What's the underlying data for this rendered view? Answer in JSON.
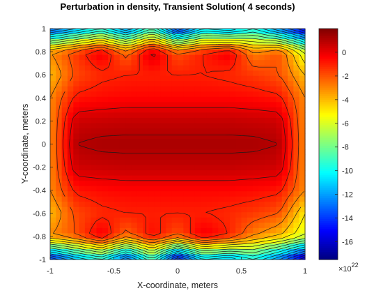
{
  "chart_data": {
    "type": "heatmap",
    "title": "Perturbation in density, Transient Solution( 4 seconds)",
    "xlabel": "X-coordinate, meters",
    "ylabel": "Y-coordinate, meters",
    "xlim": [
      -1,
      1
    ],
    "ylim": [
      -1,
      1
    ],
    "x_ticks": [
      "-1",
      "-0.5",
      "0",
      "0.5",
      "1"
    ],
    "y_ticks": [
      "1",
      "0.8",
      "0.6",
      "0.4",
      "0.2",
      "0",
      "-0.2",
      "-0.4",
      "-0.6",
      "-0.8",
      "-1"
    ],
    "colorbar": {
      "colormap": "jet",
      "clim": [
        -1.75,
        0.2
      ],
      "ticks": [
        "0",
        "-2",
        "-4",
        "-6",
        "-8",
        "-10",
        "-12",
        "-14",
        "-16"
      ],
      "exponent_base": "×10",
      "exponent_power": "22"
    },
    "contours": true,
    "grid": false,
    "field": {
      "x_values": [
        -1,
        -0.8,
        -0.6,
        -0.4,
        -0.2,
        0,
        0.2,
        0.4,
        0.6,
        0.8,
        1
      ],
      "y_values": [
        1,
        0.8,
        0.6,
        0.4,
        0.2,
        0,
        -0.2,
        -0.4,
        -0.6,
        -0.8,
        -1
      ],
      "rows": [
        [
          -1.4,
          -1.2,
          -1.0,
          -1.3,
          -0.9,
          -1.5,
          -1.1,
          -1.2,
          -1.0,
          -1.3,
          -1.6
        ],
        [
          -0.3,
          -0.15,
          0.0,
          -0.25,
          0.05,
          -0.2,
          -0.1,
          0.0,
          -0.3,
          -0.2,
          -0.6
        ],
        [
          -0.4,
          -0.18,
          -0.12,
          -0.1,
          -0.1,
          -0.1,
          -0.1,
          -0.12,
          -0.15,
          -0.2,
          -0.4
        ],
        [
          -0.3,
          -0.08,
          -0.06,
          -0.05,
          -0.05,
          -0.05,
          -0.05,
          -0.05,
          -0.06,
          -0.08,
          -0.3
        ],
        [
          -0.3,
          0.05,
          0.06,
          0.07,
          0.07,
          0.07,
          0.07,
          0.07,
          0.06,
          0.05,
          -0.3
        ],
        [
          -0.3,
          0.1,
          0.12,
          0.12,
          0.12,
          0.12,
          0.12,
          0.12,
          0.12,
          0.1,
          -0.3
        ],
        [
          -0.3,
          0.05,
          0.06,
          0.07,
          0.07,
          0.07,
          0.07,
          0.07,
          0.06,
          0.05,
          -0.3
        ],
        [
          -0.3,
          -0.08,
          -0.06,
          -0.05,
          -0.05,
          -0.05,
          -0.05,
          -0.05,
          -0.06,
          -0.08,
          -0.3
        ],
        [
          -0.4,
          -0.18,
          -0.12,
          -0.1,
          -0.1,
          -0.1,
          -0.1,
          -0.12,
          -0.15,
          -0.2,
          -0.5
        ],
        [
          -0.3,
          -0.2,
          0.0,
          -0.25,
          -0.05,
          -0.2,
          0.0,
          -0.1,
          -0.3,
          -0.4,
          -0.6
        ],
        [
          -1.5,
          -1.2,
          -1.0,
          -1.4,
          -0.9,
          -1.6,
          -1.1,
          -1.2,
          -1.0,
          -1.3,
          -1.7
        ]
      ]
    }
  }
}
